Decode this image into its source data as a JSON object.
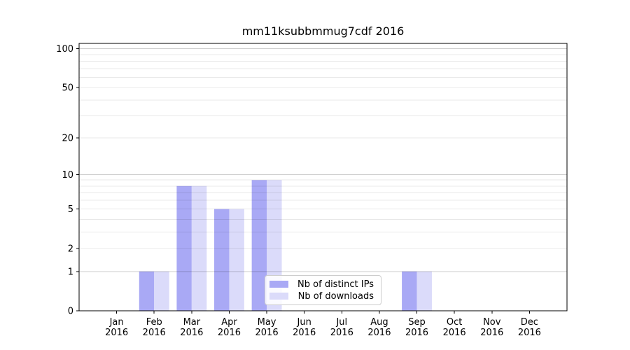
{
  "chart_data": {
    "type": "bar",
    "title": "mm11ksubbmmug7cdf 2016",
    "categories": [
      "Jan",
      "Feb",
      "Mar",
      "Apr",
      "May",
      "Jun",
      "Jul",
      "Aug",
      "Sep",
      "Oct",
      "Nov",
      "Dec"
    ],
    "year_label": "2016",
    "series": [
      {
        "name": "Nb of distinct IPs",
        "color": "#a9a9f5",
        "values": [
          0,
          1,
          8,
          5,
          9,
          0,
          0,
          0,
          1,
          0,
          0,
          0
        ]
      },
      {
        "name": "Nb of downloads",
        "color": "#dbdbfa",
        "values": [
          0,
          1,
          8,
          5,
          9,
          0,
          0,
          0,
          1,
          0,
          0,
          0
        ]
      }
    ],
    "yscale": "log1p",
    "ylim": [
      0,
      110
    ],
    "yticks": [
      0,
      1,
      2,
      5,
      10,
      20,
      50,
      100
    ],
    "grid": {
      "enabled": true,
      "major_lines": [
        1,
        10,
        100
      ],
      "minor_lines": [
        2,
        3,
        4,
        5,
        6,
        7,
        8,
        9,
        20,
        30,
        40,
        50,
        60,
        70,
        80,
        90
      ]
    },
    "legend_position": "lower-center",
    "xlabel": "",
    "ylabel": ""
  }
}
